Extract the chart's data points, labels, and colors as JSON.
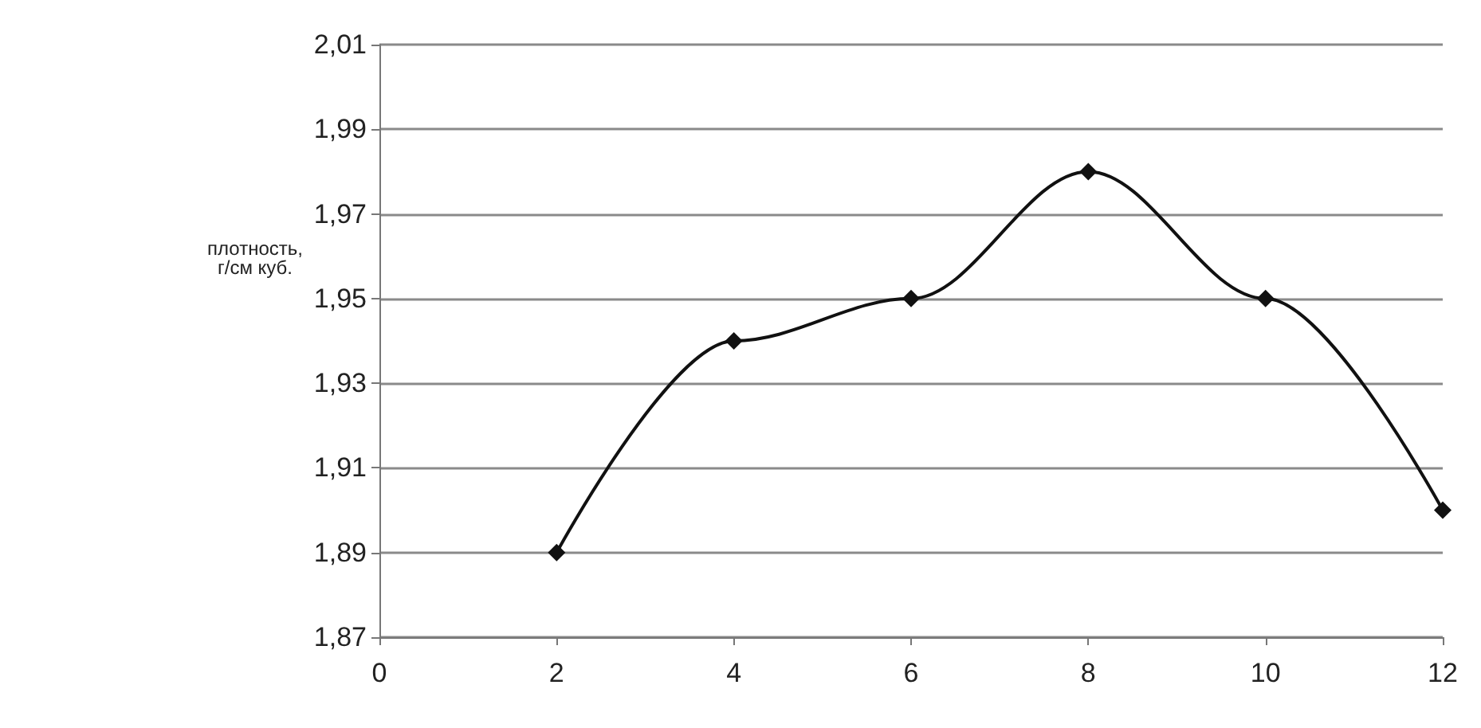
{
  "chart_data": {
    "type": "line",
    "ylabel": "плотность,\nг/см куб.",
    "x": [
      2,
      4,
      6,
      8,
      10,
      12
    ],
    "series": [
      {
        "color": "#111111",
        "values": [
          1.89,
          1.94,
          1.95,
          1.98,
          1.95,
          1.9
        ]
      }
    ],
    "xlim": [
      0,
      12
    ],
    "xticks": [
      0,
      2,
      4,
      6,
      8,
      10,
      12
    ],
    "ylim": [
      1.87,
      2.01
    ],
    "yticks": [
      {
        "value": 1.87,
        "label": "1,87"
      },
      {
        "value": 1.89,
        "label": "1,89"
      },
      {
        "value": 1.91,
        "label": "1,91"
      },
      {
        "value": 1.93,
        "label": "1,93"
      },
      {
        "value": 1.95,
        "label": "1,95"
      },
      {
        "value": 1.97,
        "label": "1,97"
      },
      {
        "value": 1.99,
        "label": "1,99"
      },
      {
        "value": 2.01,
        "label": "2,01"
      }
    ],
    "grid": "y",
    "marker": "diamond",
    "line_style": "solid"
  }
}
